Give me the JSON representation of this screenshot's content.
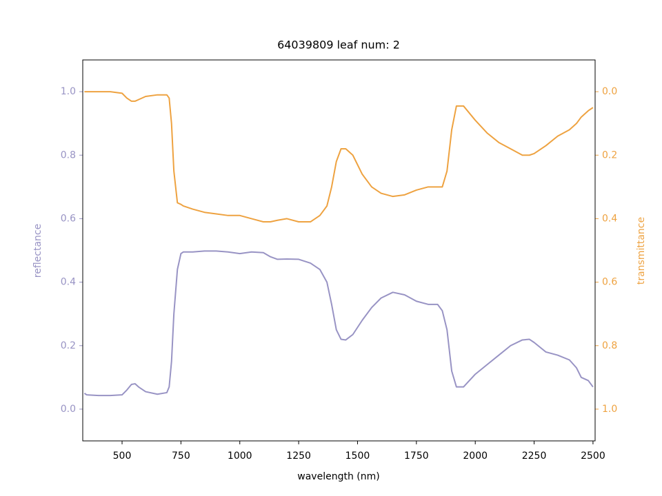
{
  "chart_data": {
    "type": "line",
    "title": "64039809 leaf num: 2",
    "xlabel": "wavelength (nm)",
    "ylabel": "reflectance",
    "y2label": "transmittance",
    "x": [
      340,
      350,
      400,
      450,
      500,
      520,
      540,
      555,
      570,
      600,
      650,
      690,
      700,
      710,
      720,
      735,
      750,
      760,
      800,
      850,
      900,
      950,
      1000,
      1050,
      1100,
      1130,
      1160,
      1200,
      1250,
      1300,
      1340,
      1370,
      1390,
      1410,
      1430,
      1450,
      1480,
      1520,
      1560,
      1600,
      1650,
      1700,
      1750,
      1800,
      1840,
      1860,
      1880,
      1900,
      1920,
      1950,
      2000,
      2050,
      2100,
      2150,
      2200,
      2230,
      2250,
      2300,
      2350,
      2400,
      2430,
      2450,
      2480,
      2500
    ],
    "series": [
      {
        "color": "#9893c4",
        "values": [
          0.05,
          0.045,
          0.043,
          0.043,
          0.045,
          0.06,
          0.078,
          0.08,
          0.07,
          0.055,
          0.047,
          0.052,
          0.07,
          0.15,
          0.3,
          0.44,
          0.49,
          0.495,
          0.495,
          0.498,
          0.498,
          0.495,
          0.49,
          0.495,
          0.493,
          0.48,
          0.472,
          0.473,
          0.472,
          0.46,
          0.44,
          0.4,
          0.33,
          0.25,
          0.22,
          0.218,
          0.235,
          0.28,
          0.32,
          0.35,
          0.368,
          0.36,
          0.34,
          0.33,
          0.33,
          0.31,
          0.25,
          0.12,
          0.07,
          0.07,
          0.11,
          0.14,
          0.17,
          0.2,
          0.218,
          0.22,
          0.21,
          0.18,
          0.17,
          0.155,
          0.13,
          0.1,
          0.09,
          0.07
        ]
      },
      {
        "color": "#eea240",
        "axis": "y2",
        "values": [
          0,
          0,
          0,
          0,
          0.005,
          0.02,
          0.03,
          0.03,
          0.025,
          0.015,
          0.01,
          0.01,
          0.02,
          0.1,
          0.25,
          0.35,
          0.355,
          0.36,
          0.37,
          0.38,
          0.385,
          0.39,
          0.39,
          0.4,
          0.41,
          0.41,
          0.405,
          0.4,
          0.41,
          0.41,
          0.39,
          0.36,
          0.3,
          0.22,
          0.18,
          0.18,
          0.2,
          0.26,
          0.3,
          0.32,
          0.33,
          0.325,
          0.31,
          0.3,
          0.3,
          0.3,
          0.25,
          0.12,
          0.045,
          0.045,
          0.09,
          0.13,
          0.16,
          0.18,
          0.2,
          0.2,
          0.195,
          0.17,
          0.14,
          0.12,
          0.1,
          0.08,
          0.06,
          0.05
        ]
      }
    ],
    "xlim": [
      333,
      2509
    ],
    "xticks": [
      500,
      750,
      1000,
      1250,
      1500,
      1750,
      2000,
      2250,
      2500
    ],
    "ylim": [
      -0.1,
      1.1
    ],
    "yticks": [
      {
        "value": 0,
        "label": "0.0"
      },
      0.2,
      0.4,
      0.6,
      0.8,
      {
        "value": 1,
        "label": "1.0"
      }
    ],
    "y2lim": [
      1.1,
      -0.1
    ],
    "y2ticks": [
      {
        "value": 0,
        "label": "0.0"
      },
      0.2,
      0.4,
      0.6,
      0.8,
      {
        "value": 1,
        "label": "1.0"
      }
    ],
    "grid": false
  }
}
